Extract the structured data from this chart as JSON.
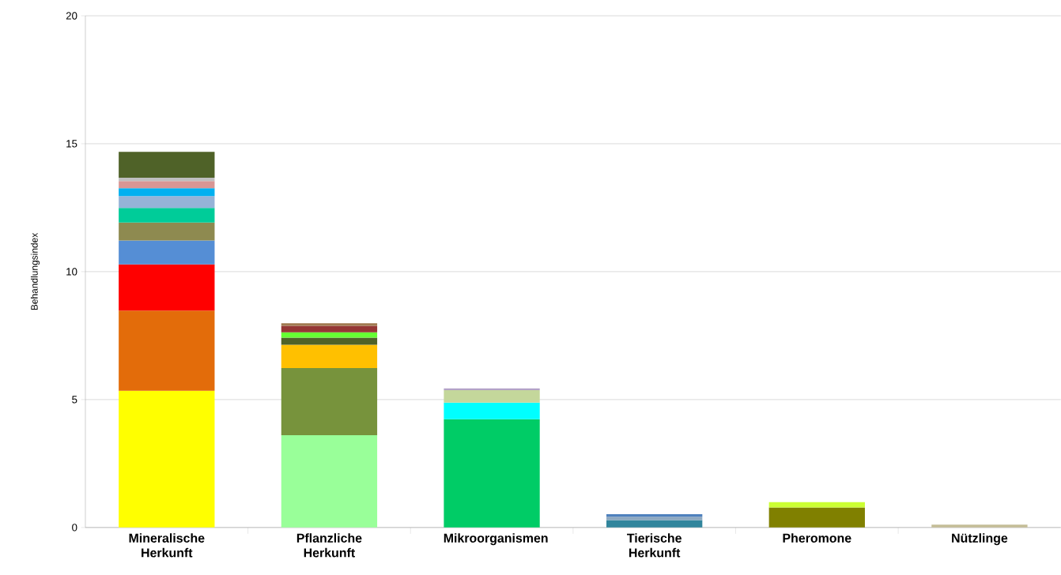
{
  "chart_data": {
    "type": "bar",
    "ylabel": "Behandlungsindex",
    "categories": [
      "Mineralische Herkunft",
      "Pflanzliche Herkunft",
      "Mikroorganismen",
      "Tierische Herkunft",
      "Pheromone",
      "Nützlinge"
    ],
    "stacked": true,
    "ylim": [
      0,
      20
    ],
    "yticks": [
      0,
      5,
      10,
      15,
      20
    ],
    "grid": "y",
    "series": [
      {
        "values": [
          5.34,
          3.61,
          4.23,
          0.29,
          0.78,
          0.11
        ],
        "colors": [
          "#ffff00",
          "#99ff99",
          "#00cc66",
          "#31859c",
          "#808000",
          "#c4bd97"
        ]
      },
      {
        "values": [
          3.14,
          2.62,
          0.65,
          0.13,
          0.21,
          null
        ],
        "colors": [
          "#e36c0a",
          "#77933c",
          "#00ffff",
          "#8ea9c1",
          "#ccff33",
          null
        ]
      },
      {
        "values": [
          1.8,
          0.91,
          0.49,
          0.1,
          null,
          null
        ],
        "colors": [
          "#ff0000",
          "#ffc000",
          "#c4d79b",
          "#4f81bd",
          null,
          null
        ]
      },
      {
        "values": [
          0.94,
          0.28,
          0.07,
          null,
          null,
          null
        ],
        "colors": [
          "#558ed5",
          "#4f6228",
          "#b3a2c7",
          null,
          null,
          null
        ]
      },
      {
        "values": [
          0.7,
          0.21,
          null,
          null,
          null,
          null
        ],
        "colors": [
          "#8e8a50",
          "#66ff33",
          null,
          null,
          null,
          null
        ]
      },
      {
        "values": [
          0.57,
          0.25,
          null,
          null,
          null,
          null
        ],
        "colors": [
          "#00cc99",
          "#953735",
          null,
          null,
          null,
          null
        ]
      },
      {
        "values": [
          0.46,
          0.1,
          null,
          null,
          null,
          null
        ],
        "colors": [
          "#95b3d7",
          "#a07a50",
          null,
          null,
          null,
          null
        ]
      },
      {
        "values": [
          0.31,
          null,
          null,
          null,
          null,
          null
        ],
        "colors": [
          "#00b0f0",
          null,
          null,
          null,
          null,
          null
        ]
      },
      {
        "values": [
          0.28,
          null,
          null,
          null,
          null,
          null
        ],
        "colors": [
          "#d99694",
          null,
          null,
          null,
          null,
          null
        ]
      },
      {
        "values": [
          0.13,
          null,
          null,
          null,
          null,
          null
        ],
        "colors": [
          "#bfbfbf",
          null,
          null,
          null,
          null,
          null
        ]
      },
      {
        "values": [
          1.01,
          null,
          null,
          null,
          null,
          null
        ],
        "colors": [
          "#4f6228",
          null,
          null,
          null,
          null,
          null
        ]
      }
    ]
  }
}
